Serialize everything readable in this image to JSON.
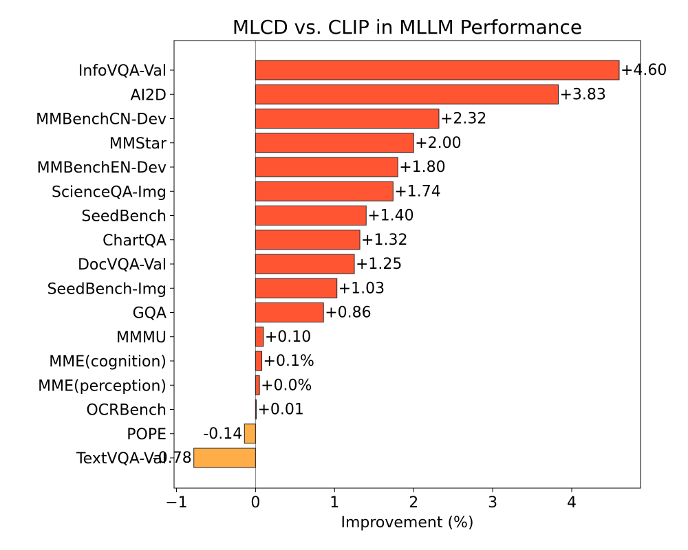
{
  "chart_data": {
    "type": "bar",
    "orientation": "horizontal",
    "title": "MLCD vs. CLIP in MLLM Performance",
    "xlabel": "Improvement (%)",
    "ylabel": "",
    "xlim": [
      -1.03,
      4.87
    ],
    "xticks": [
      -1,
      0,
      1,
      2,
      3,
      4
    ],
    "xtick_labels": [
      "−1",
      "0",
      "1",
      "2",
      "3",
      "4"
    ],
    "grid": false,
    "legend": "none",
    "colors": {
      "positive": "#ff5533",
      "negative": "#ffad47",
      "edge": "#222222",
      "zero_line": "#808080"
    },
    "categories": [
      "InfoVQA-Val",
      "AI2D",
      "MMBenchCN-Dev",
      "MMStar",
      "MMBenchEN-Dev",
      "ScienceQA-Img",
      "SeedBench",
      "ChartQA",
      "DocVQA-Val",
      "SeedBench-Img",
      "GQA",
      "MMMU",
      "MME(cognition)",
      "MME(perception)",
      "OCRBench",
      "POPE",
      "TextVQA-Val"
    ],
    "values": [
      4.6,
      3.83,
      2.32,
      2.0,
      1.8,
      1.74,
      1.4,
      1.32,
      1.25,
      1.03,
      0.86,
      0.1,
      0.08,
      0.05,
      0.01,
      -0.14,
      -0.78
    ],
    "data_labels": [
      "+4.60",
      "+3.83",
      "+2.32",
      "+2.00",
      "+1.80",
      "+1.74",
      "+1.40",
      "+1.32",
      "+1.25",
      "+1.03",
      "+0.86",
      "+0.10",
      "+0.1%",
      "+0.0%",
      "+0.01",
      "-0.14",
      "-0.78"
    ]
  }
}
